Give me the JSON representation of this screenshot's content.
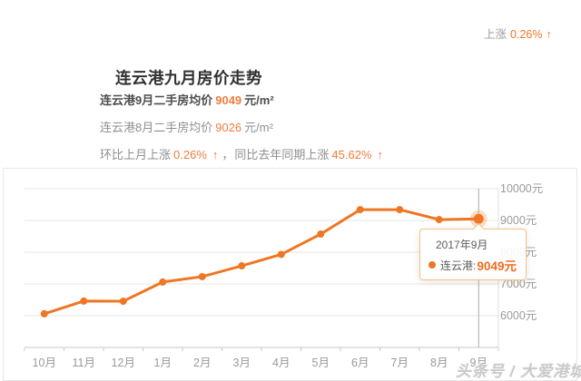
{
  "colors": {
    "accent": "#ee7624",
    "accent_text": "#ee7d3d",
    "tooltip_border": "#f3bf8d",
    "grid_line": "#e4e4e4",
    "axis_line": "#c9c9c9",
    "label_gray": "#9a9a9a"
  },
  "header": {
    "trend_badge": {
      "label": "上涨",
      "value": "0.26%",
      "arrow": "↑"
    },
    "title": "连云港九月房价走势",
    "line_current": {
      "label": "连云港9月二手房均价",
      "value": "9049",
      "unit": "元/m²"
    },
    "line_previous": {
      "label": "连云港8月二手房均价",
      "value": "9026",
      "unit": "元/m²"
    },
    "line_compare": {
      "label_mom": "环比上月上涨",
      "value_mom": "0.26%",
      "arrow_mom": "↑",
      "separator": "，",
      "label_yoy": "同比去年同期上涨",
      "value_yoy": "45.62%",
      "arrow_yoy": "↑"
    }
  },
  "chart_data": {
    "type": "line",
    "series_name": "连云港",
    "categories": [
      "10月",
      "11月",
      "12月",
      "1月",
      "2月",
      "3月",
      "4月",
      "5月",
      "6月",
      "7月",
      "8月",
      "9月"
    ],
    "values": [
      6060,
      6460,
      6455,
      7060,
      7230,
      7570,
      7930,
      8570,
      9340,
      9340,
      9026,
      9049
    ],
    "unit": "元",
    "line_color": "#ee7624",
    "highlighted_index": 11,
    "y_axis": {
      "position": "right",
      "tick_labels": [
        "10000元",
        "9000元",
        "8000元",
        "7000元",
        "6000元"
      ],
      "tick_values": [
        10000,
        9000,
        8000,
        7000,
        6000
      ],
      "min": 5000,
      "max": 10000
    },
    "grid": true,
    "legend": "none"
  },
  "tooltip": {
    "date": "2017年9月",
    "series_label": "连云港:",
    "value": "9049元"
  },
  "watermark": "头条号 / 大爱港城"
}
